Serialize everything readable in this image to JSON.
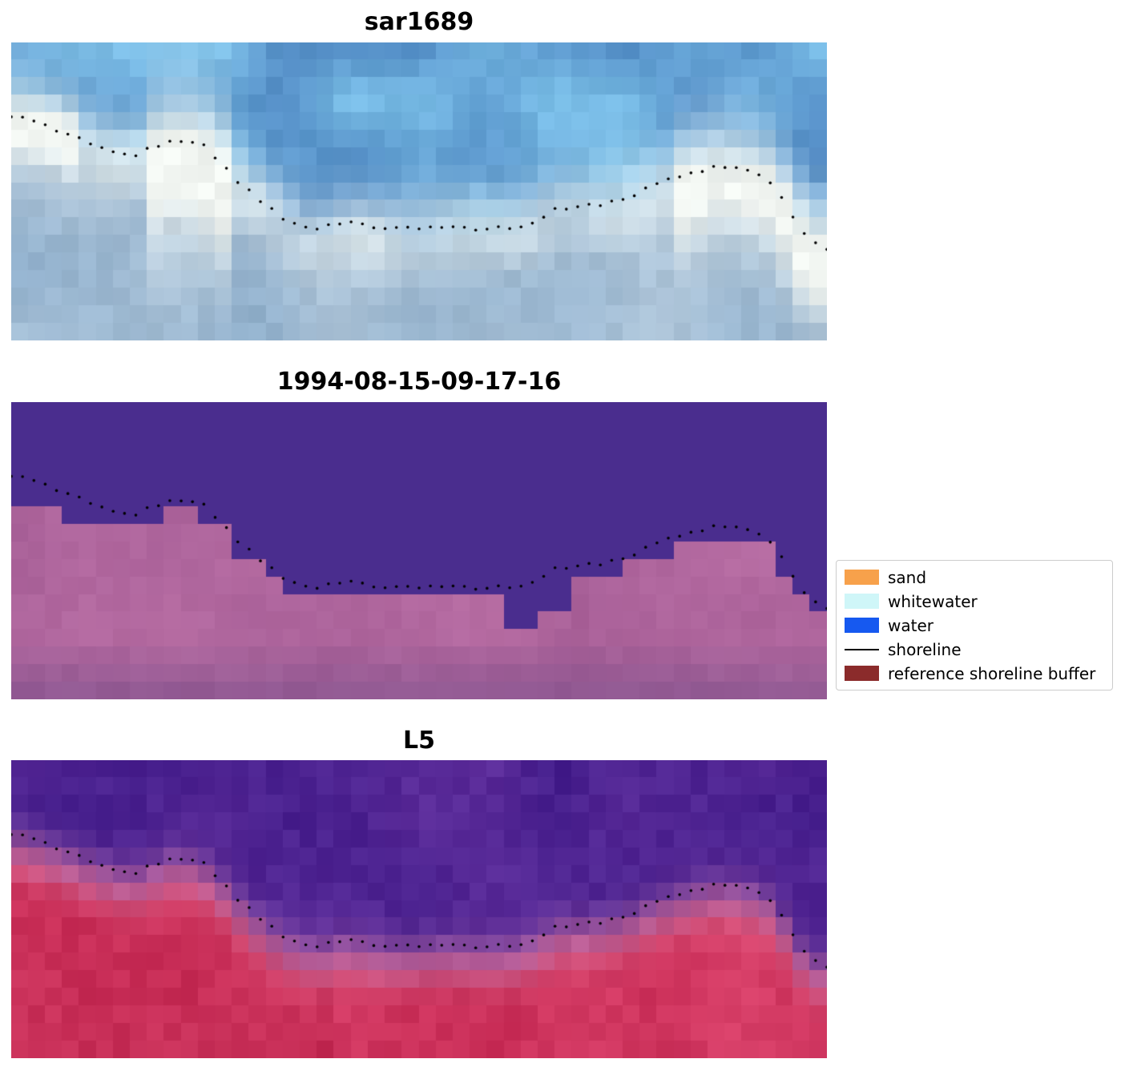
{
  "chart_data": {
    "type": "heatmap",
    "title": "",
    "panels": [
      {
        "title": "sar1689",
        "style": "sar",
        "palette": {
          "water_deep": "#4E87C2",
          "water_light": "#7BBFE8",
          "sky_patch": "#93D2F2",
          "whitewater": "#F1F5F1",
          "lower_a": "#AFC6DA",
          "lower_b": "#8EAECB"
        }
      },
      {
        "title": "1994-08-15-09-17-16",
        "style": "classified",
        "palette": {
          "water_overlay": "#4A2D8E",
          "buffer_a": "#BA6FA5",
          "buffer_b": "#A75F97",
          "buffer_dark": "#8A5690"
        }
      },
      {
        "title": "L5",
        "style": "l5",
        "palette": {
          "above_a": "#5C2C9A",
          "above_b": "#451E8C",
          "below_a": "#C92D57",
          "below_b": "#D84069",
          "below_dark": "#A60E36",
          "edge_pink": "#DD8FB3"
        }
      }
    ],
    "legend": {
      "items": [
        {
          "label": "sand",
          "swatch": "patch",
          "color": "#F7A14B"
        },
        {
          "label": "whitewater",
          "swatch": "patch",
          "color": "#CFF6F8"
        },
        {
          "label": "water",
          "swatch": "patch",
          "color": "#1659F0"
        },
        {
          "label": "shoreline",
          "swatch": "line",
          "color": "#000000"
        },
        {
          "label": "reference shoreline buffer",
          "swatch": "patch",
          "color": "#8B2B2B"
        }
      ]
    },
    "shoreline_points_norm": [
      [
        0.0,
        0.247
      ],
      [
        0.03,
        0.27
      ],
      [
        0.06,
        0.3
      ],
      [
        0.09,
        0.33
      ],
      [
        0.12,
        0.36
      ],
      [
        0.15,
        0.378
      ],
      [
        0.175,
        0.352
      ],
      [
        0.195,
        0.33
      ],
      [
        0.212,
        0.325
      ],
      [
        0.235,
        0.347
      ],
      [
        0.258,
        0.4
      ],
      [
        0.28,
        0.47
      ],
      [
        0.305,
        0.535
      ],
      [
        0.33,
        0.585
      ],
      [
        0.355,
        0.615
      ],
      [
        0.38,
        0.625
      ],
      [
        0.405,
        0.607
      ],
      [
        0.43,
        0.612
      ],
      [
        0.455,
        0.625
      ],
      [
        0.48,
        0.628
      ],
      [
        0.505,
        0.622
      ],
      [
        0.53,
        0.618
      ],
      [
        0.56,
        0.622
      ],
      [
        0.59,
        0.625
      ],
      [
        0.615,
        0.62
      ],
      [
        0.64,
        0.6
      ],
      [
        0.66,
        0.568
      ],
      [
        0.68,
        0.552
      ],
      [
        0.705,
        0.548
      ],
      [
        0.73,
        0.54
      ],
      [
        0.755,
        0.52
      ],
      [
        0.78,
        0.49
      ],
      [
        0.805,
        0.462
      ],
      [
        0.83,
        0.44
      ],
      [
        0.855,
        0.422
      ],
      [
        0.87,
        0.418
      ],
      [
        0.89,
        0.425
      ],
      [
        0.91,
        0.44
      ],
      [
        0.928,
        0.462
      ],
      [
        0.942,
        0.505
      ],
      [
        0.952,
        0.555
      ],
      [
        0.962,
        0.607
      ],
      [
        0.975,
        0.648
      ],
      [
        0.988,
        0.672
      ],
      [
        1.0,
        0.69
      ]
    ]
  }
}
